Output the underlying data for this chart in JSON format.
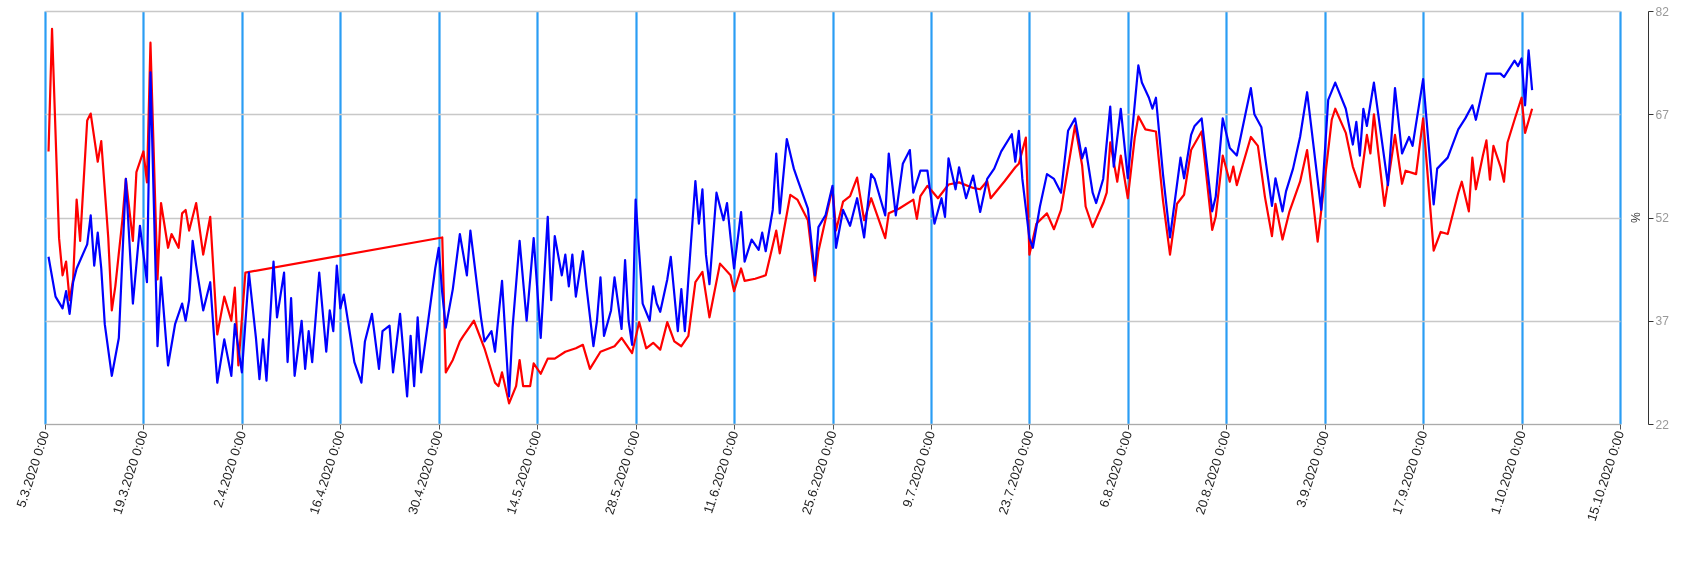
{
  "chart_data": {
    "type": "line",
    "ylabel": "%",
    "ylim": [
      22,
      82
    ],
    "yticks": [
      22,
      37,
      52,
      67,
      82
    ],
    "xlim": [
      "2020-03-05",
      "2020-10-15"
    ],
    "xticks": [
      {
        "value": "2020-03-05",
        "label": "5.3.2020 0:00"
      },
      {
        "value": "2020-03-19",
        "label": "19.3.2020 0:00"
      },
      {
        "value": "2020-04-02",
        "label": "2.4.2020 0:00"
      },
      {
        "value": "2020-04-16",
        "label": "16.4.2020 0:00"
      },
      {
        "value": "2020-04-30",
        "label": "30.4.2020 0:00"
      },
      {
        "value": "2020-05-14",
        "label": "14.5.2020 0:00"
      },
      {
        "value": "2020-05-28",
        "label": "28.5.2020 0:00"
      },
      {
        "value": "2020-06-11",
        "label": "11.6.2020 0:00"
      },
      {
        "value": "2020-06-25",
        "label": "25.6.2020 0:00"
      },
      {
        "value": "2020-07-09",
        "label": "9.7.2020 0:00"
      },
      {
        "value": "2020-07-23",
        "label": "23.7.2020 0:00"
      },
      {
        "value": "2020-08-06",
        "label": "6.8.2020 0:00"
      },
      {
        "value": "2020-08-20",
        "label": "20.8.2020 0:00"
      },
      {
        "value": "2020-09-03",
        "label": "3.9.2020 0:00"
      },
      {
        "value": "2020-09-17",
        "label": "17.9.2020 0:00"
      },
      {
        "value": "2020-10-01",
        "label": "1.10.2020 0:00"
      },
      {
        "value": "2020-10-15",
        "label": "15.10.2020 0:00"
      }
    ],
    "grid": true,
    "marker": "none",
    "line_style": "solid",
    "series": [
      {
        "color": "#ff0000",
        "x": [
          "2020-03-05T12:00",
          "2020-03-06T00:00",
          "2020-03-07T00:00",
          "2020-03-07T12:00",
          "2020-03-08T00:00",
          "2020-03-08T12:00",
          "2020-03-09T00:00",
          "2020-03-09T12:00",
          "2020-03-10T00:00",
          "2020-03-11T00:00",
          "2020-03-11T12:00",
          "2020-03-12T12:00",
          "2020-03-13T00:00",
          "2020-03-14T00:00",
          "2020-03-14T12:00",
          "2020-03-15T00:00",
          "2020-03-16T00:00",
          "2020-03-16T12:00",
          "2020-03-17T12:00",
          "2020-03-18T00:00",
          "2020-03-19T00:00",
          "2020-03-19T12:00",
          "2020-03-20T00:00",
          "2020-03-21T00:00",
          "2020-03-21T12:00",
          "2020-03-22T12:00",
          "2020-03-23T00:00",
          "2020-03-24T00:00",
          "2020-03-24T12:00",
          "2020-03-25T00:00",
          "2020-03-25T12:00",
          "2020-03-26T12:00",
          "2020-03-27T12:00",
          "2020-03-28T12:00",
          "2020-03-29T12:00",
          "2020-03-30T12:00",
          "2020-03-31T12:00",
          "2020-04-01T00:00",
          "2020-04-01T12:00",
          "2020-04-02T12:00",
          "2020-04-30T12:00",
          "2020-05-01T00:00",
          "2020-05-02T00:00",
          "2020-05-03T00:00",
          "2020-05-03T12:00",
          "2020-05-05T00:00",
          "2020-05-06T12:00",
          "2020-05-08T00:00",
          "2020-05-08T12:00",
          "2020-05-09T00:00",
          "2020-05-10T00:00",
          "2020-05-11T00:00",
          "2020-05-11T12:00",
          "2020-05-12T00:00",
          "2020-05-13T00:00",
          "2020-05-13T12:00",
          "2020-05-14T12:00",
          "2020-05-15T12:00",
          "2020-05-16T12:00",
          "2020-05-18T00:00",
          "2020-05-19T12:00",
          "2020-05-20T12:00",
          "2020-05-21T12:00",
          "2020-05-23T00:00",
          "2020-05-25T00:00",
          "2020-05-26T00:00",
          "2020-05-27T12:00",
          "2020-05-28T12:00",
          "2020-05-29T12:00",
          "2020-05-30T12:00",
          "2020-05-31T12:00",
          "2020-06-01T12:00",
          "2020-06-02T12:00",
          "2020-06-03T12:00",
          "2020-06-04T12:00",
          "2020-06-05T12:00",
          "2020-06-06T12:00",
          "2020-06-07T12:00",
          "2020-06-09T00:00",
          "2020-06-10T12:00",
          "2020-06-11T00:00",
          "2020-06-12T00:00",
          "2020-06-12T12:00",
          "2020-06-14T00:00",
          "2020-06-15T12:00",
          "2020-06-17T00:00",
          "2020-06-17T12:00",
          "2020-06-19T00:00",
          "2020-06-20T00:00",
          "2020-06-21T12:00",
          "2020-06-22T12:00",
          "2020-06-23T00:00",
          "2020-06-25T00:00",
          "2020-06-25T12:00",
          "2020-06-26T12:00",
          "2020-06-27T12:00",
          "2020-06-28T12:00",
          "2020-06-29T12:00",
          "2020-06-30T12:00",
          "2020-07-02T12:00",
          "2020-07-03T00:00",
          "2020-07-04T12:00",
          "2020-07-06T12:00",
          "2020-07-07T00:00",
          "2020-07-07T12:00",
          "2020-07-08T12:00",
          "2020-07-10T00:00",
          "2020-07-11T12:00",
          "2020-07-13T00:00",
          "2020-07-15T00:00",
          "2020-07-16T00:00",
          "2020-07-17T00:00",
          "2020-07-17T12:00",
          "2020-07-19T12:00",
          "2020-07-21T00:00",
          "2020-07-21T12:00",
          "2020-07-22T12:00",
          "2020-07-23T00:00",
          "2020-07-24T00:00",
          "2020-07-25T12:00",
          "2020-07-26T12:00",
          "2020-07-27T12:00",
          "2020-07-29T12:00",
          "2020-07-30T12:00",
          "2020-07-31T00:00",
          "2020-08-01T00:00",
          "2020-08-02T12:00",
          "2020-08-03T00:00",
          "2020-08-03T12:00",
          "2020-08-04T12:00",
          "2020-08-05T00:00",
          "2020-08-06T00:00",
          "2020-08-07T00:00",
          "2020-08-07T12:00",
          "2020-08-08T12:00",
          "2020-08-10T00:00",
          "2020-08-11T00:00",
          "2020-08-12T00:00",
          "2020-08-13T00:00",
          "2020-08-14T00:00",
          "2020-08-15T00:00",
          "2020-08-16T12:00",
          "2020-08-18T00:00",
          "2020-08-18T12:00",
          "2020-08-19T12:00",
          "2020-08-20T12:00",
          "2020-08-21T00:00",
          "2020-08-21T12:00",
          "2020-08-23T12:00",
          "2020-08-24T12:00",
          "2020-08-25T12:00",
          "2020-08-26T12:00",
          "2020-08-27T00:00",
          "2020-08-28T00:00",
          "2020-08-29T00:00",
          "2020-08-30T12:00",
          "2020-08-31T12:00",
          "2020-09-02T00:00",
          "2020-09-04T00:00",
          "2020-09-04T12:00",
          "2020-09-06T00:00",
          "2020-09-07T00:00",
          "2020-09-08T00:00",
          "2020-09-09T00:00",
          "2020-09-09T12:00",
          "2020-09-10T00:00",
          "2020-09-11T12:00",
          "2020-09-13T00:00",
          "2020-09-14T00:00",
          "2020-09-14T12:00",
          "2020-09-16T00:00",
          "2020-09-17T00:00",
          "2020-09-18T12:00",
          "2020-09-19T12:00",
          "2020-09-20T12:00",
          "2020-09-22T00:00",
          "2020-09-22T12:00",
          "2020-09-23T12:00",
          "2020-09-24T00:00",
          "2020-09-24T12:00",
          "2020-09-25T12:00",
          "2020-09-26T00:00",
          "2020-09-26T12:00",
          "2020-09-27T00:00",
          "2020-09-28T00:00",
          "2020-09-28T12:00",
          "2020-09-29T00:00",
          "2020-09-30T00:00",
          "2020-10-01T00:00",
          "2020-10-01T12:00",
          "2020-10-02T12:00"
        ],
        "values": [
          61.6,
          79.4,
          49,
          43.6,
          45.6,
          40,
          43,
          54.6,
          48.6,
          66.1,
          67.1,
          60.1,
          63.1,
          49,
          38.5,
          42,
          51.6,
          57.6,
          48.6,
          58.6,
          61.6,
          57.1,
          77.4,
          43,
          54.1,
          47.6,
          49.6,
          47.6,
          52.6,
          53.1,
          50.1,
          54.1,
          46.6,
          52.1,
          35,
          40.5,
          37,
          41.8,
          30.5,
          44,
          49.1,
          29.5,
          31.3,
          34,
          34.8,
          37,
          33,
          28,
          27.5,
          29.5,
          25,
          27.5,
          31.3,
          27.5,
          27.5,
          30.8,
          29.3,
          31.5,
          31.5,
          32.5,
          33,
          33.5,
          30,
          32.5,
          33.3,
          34.5,
          32.3,
          36.8,
          33,
          33.8,
          32.8,
          36.8,
          34,
          33.3,
          34.8,
          42.6,
          44.1,
          37.5,
          45.3,
          43.6,
          41.3,
          44.6,
          42.8,
          43.1,
          43.6,
          50.1,
          46.8,
          55.3,
          54.6,
          51.6,
          42.8,
          47.1,
          56.3,
          50.1,
          54.3,
          55.1,
          57.8,
          51.6,
          54.8,
          49,
          52.6,
          53.3,
          54.6,
          51.8,
          55.1,
          56.6,
          54.8,
          56.8,
          57.1,
          56.3,
          56.1,
          57.3,
          54.8,
          57.3,
          59.3,
          59.8,
          63.6,
          46.6,
          51.1,
          52.6,
          50.3,
          53.1,
          65.4,
          59.6,
          53.6,
          50.6,
          54.1,
          55.6,
          62.9,
          57.2,
          61,
          54.8,
          63.7,
          66.7,
          64.8,
          64.5,
          54.5,
          46.6,
          54,
          55.3,
          61.8,
          64.5,
          50.2,
          52.1,
          61,
          57.2,
          59.4,
          56.7,
          63.7,
          62.4,
          55,
          49.3,
          54,
          48.8,
          52.9,
          57.2,
          61.8,
          48.5,
          66.2,
          67.8,
          64.3,
          59.4,
          56.4,
          64,
          61.3,
          67,
          53.7,
          64,
          56.9,
          58.8,
          58.3,
          66.4,
          47.2,
          49.9,
          49.6,
          55.6,
          57.2,
          52.9,
          60.7,
          56.1,
          61,
          63.2,
          57.5,
          62.4,
          59.4,
          57.2,
          62.9,
          66.2,
          69.4,
          64.3,
          67.8
        ]
      },
      {
        "color": "#0000ff",
        "x": [
          "2020-03-05T12:00",
          "2020-03-06T12:00",
          "2020-03-07T12:00",
          "2020-03-08T00:00",
          "2020-03-08T12:00",
          "2020-03-09T00:00",
          "2020-03-09T12:00",
          "2020-03-11T00:00",
          "2020-03-11T12:00",
          "2020-03-12T00:00",
          "2020-03-12T12:00",
          "2020-03-13T00:00",
          "2020-03-13T12:00",
          "2020-03-14T12:00",
          "2020-03-15T12:00",
          "2020-03-16T12:00",
          "2020-03-17T12:00",
          "2020-03-18T12:00",
          "2020-03-19T12:00",
          "2020-03-20T00:00",
          "2020-03-21T00:00",
          "2020-03-21T12:00",
          "2020-03-22T12:00",
          "2020-03-23T12:00",
          "2020-03-24T12:00",
          "2020-03-25T00:00",
          "2020-03-25T12:00",
          "2020-03-26T00:00",
          "2020-03-26T12:00",
          "2020-03-27T12:00",
          "2020-03-28T12:00",
          "2020-03-29T12:00",
          "2020-03-30T12:00",
          "2020-03-31T12:00",
          "2020-04-01T00:00",
          "2020-04-02T00:00",
          "2020-04-03T00:00",
          "2020-04-04T00:00",
          "2020-04-04T12:00",
          "2020-04-05T00:00",
          "2020-04-05T12:00",
          "2020-04-06T12:00",
          "2020-04-07T00:00",
          "2020-04-08T00:00",
          "2020-04-08T12:00",
          "2020-04-09T00:00",
          "2020-04-09T12:00",
          "2020-04-10T12:00",
          "2020-04-11T00:00",
          "2020-04-11T12:00",
          "2020-04-12T00:00",
          "2020-04-13T00:00",
          "2020-04-14T00:00",
          "2020-04-14T12:00",
          "2020-04-15T00:00",
          "2020-04-15T12:00",
          "2020-04-16T00:00",
          "2020-04-16T12:00",
          "2020-04-18T00:00",
          "2020-04-19T00:00",
          "2020-04-19T12:00",
          "2020-04-20T12:00",
          "2020-04-21T12:00",
          "2020-04-22T00:00",
          "2020-04-23T00:00",
          "2020-04-23T12:00",
          "2020-04-24T12:00",
          "2020-04-25T12:00",
          "2020-04-26T00:00",
          "2020-04-26T12:00",
          "2020-04-27T00:00",
          "2020-04-27T12:00",
          "2020-04-28T12:00",
          "2020-04-29T12:00",
          "2020-04-30T00:00",
          "2020-04-30T12:00",
          "2020-05-01T00:00",
          "2020-05-02T00:00",
          "2020-05-03T00:00",
          "2020-05-04T00:00",
          "2020-05-04T12:00",
          "2020-05-06T00:00",
          "2020-05-06T12:00",
          "2020-05-07T12:00",
          "2020-05-08T00:00",
          "2020-05-09T00:00",
          "2020-05-10T00:00",
          "2020-05-10T12:00",
          "2020-05-11T12:00",
          "2020-05-12T12:00",
          "2020-05-13T12:00",
          "2020-05-14T12:00",
          "2020-05-15T12:00",
          "2020-05-16T00:00",
          "2020-05-16T12:00",
          "2020-05-17T12:00",
          "2020-05-18T00:00",
          "2020-05-18T12:00",
          "2020-05-19T00:00",
          "2020-05-19T12:00",
          "2020-05-20T12:00",
          "2020-05-21T00:00",
          "2020-05-22T00:00",
          "2020-05-22T12:00",
          "2020-05-23T00:00",
          "2020-05-23T12:00",
          "2020-05-24T12:00",
          "2020-05-25T00:00",
          "2020-05-26T00:00",
          "2020-05-26T12:00",
          "2020-05-27T00:00",
          "2020-05-27T12:00",
          "2020-05-28T00:00",
          "2020-05-29T00:00",
          "2020-05-30T00:00",
          "2020-05-30T12:00",
          "2020-05-31T00:00",
          "2020-05-31T12:00",
          "2020-06-01T12:00",
          "2020-06-02T00:00",
          "2020-06-03T00:00",
          "2020-06-03T12:00",
          "2020-06-04T00:00",
          "2020-06-04T12:00",
          "2020-06-05T12:00",
          "2020-06-06T00:00",
          "2020-06-06T12:00",
          "2020-06-07T00:00",
          "2020-06-07T12:00",
          "2020-06-08T12:00",
          "2020-06-09T12:00",
          "2020-06-10T00:00",
          "2020-06-10T12:00",
          "2020-06-11T00:00",
          "2020-06-12T00:00",
          "2020-06-12T12:00",
          "2020-06-13T12:00",
          "2020-06-14T12:00",
          "2020-06-15T00:00",
          "2020-06-15T12:00",
          "2020-06-16T12:00",
          "2020-06-17T00:00",
          "2020-06-17T12:00",
          "2020-06-18T12:00",
          "2020-06-19T12:00",
          "2020-06-20T00:00",
          "2020-06-21T12:00",
          "2020-06-22T12:00",
          "2020-06-23T00:00",
          "2020-06-24T00:00",
          "2020-06-25T00:00",
          "2020-06-25T12:00",
          "2020-06-26T12:00",
          "2020-06-27T12:00",
          "2020-06-28T12:00",
          "2020-06-29T12:00",
          "2020-06-30T12:00",
          "2020-07-01T00:00",
          "2020-07-02T12:00",
          "2020-07-03T00:00",
          "2020-07-04T00:00",
          "2020-07-05T00:00",
          "2020-07-06T00:00",
          "2020-07-06T12:00",
          "2020-07-07T12:00",
          "2020-07-08T12:00",
          "2020-07-09T12:00",
          "2020-07-10T12:00",
          "2020-07-11T00:00",
          "2020-07-11T12:00",
          "2020-07-12T12:00",
          "2020-07-13T00:00",
          "2020-07-14T00:00",
          "2020-07-15T00:00",
          "2020-07-16T00:00",
          "2020-07-17T00:00",
          "2020-07-18T00:00",
          "2020-07-19T00:00",
          "2020-07-20T12:00",
          "2020-07-21T00:00",
          "2020-07-21T12:00",
          "2020-07-22T00:00",
          "2020-07-23T00:00",
          "2020-07-23T12:00",
          "2020-07-24T12:00",
          "2020-07-25T12:00",
          "2020-07-26T12:00",
          "2020-07-27T12:00",
          "2020-07-28T12:00",
          "2020-07-29T12:00",
          "2020-07-30T12:00",
          "2020-07-31T00:00",
          "2020-08-01T00:00",
          "2020-08-01T12:00",
          "2020-08-02T12:00",
          "2020-08-03T12:00",
          "2020-08-04T00:00",
          "2020-08-05T00:00",
          "2020-08-06T00:00",
          "2020-08-07T12:00",
          "2020-08-08T00:00",
          "2020-08-09T00:00",
          "2020-08-09T12:00",
          "2020-08-10T00:00",
          "2020-08-11T00:00",
          "2020-08-12T00:00",
          "2020-08-13T12:00",
          "2020-08-14T00:00",
          "2020-08-15T00:00",
          "2020-08-15T12:00",
          "2020-08-16T12:00",
          "2020-08-18T00:00",
          "2020-08-18T12:00",
          "2020-08-19T12:00",
          "2020-08-20T12:00",
          "2020-08-21T12:00",
          "2020-08-23T12:00",
          "2020-08-24T00:00",
          "2020-08-25T00:00",
          "2020-08-25T12:00",
          "2020-08-26T12:00",
          "2020-08-27T00:00",
          "2020-08-28T00:00",
          "2020-08-28T12:00",
          "2020-08-29T12:00",
          "2020-08-30T12:00",
          "2020-08-31T12:00",
          "2020-09-02T12:00",
          "2020-09-03T12:00",
          "2020-09-04T12:00",
          "2020-09-06T00:00",
          "2020-09-07T00:00",
          "2020-09-07T12:00",
          "2020-09-08T00:00",
          "2020-09-08T12:00",
          "2020-09-09T00:00",
          "2020-09-10T00:00",
          "2020-09-12T00:00",
          "2020-09-13T00:00",
          "2020-09-14T00:00",
          "2020-09-15T00:00",
          "2020-09-15T12:00",
          "2020-09-17T00:00",
          "2020-09-18T12:00",
          "2020-09-19T00:00",
          "2020-09-20T12:00",
          "2020-09-22T00:00",
          "2020-09-23T00:00",
          "2020-09-24T00:00",
          "2020-09-24T12:00",
          "2020-09-26T00:00",
          "2020-09-28T00:00",
          "2020-09-28T12:00",
          "2020-09-30T00:00",
          "2020-09-30T12:00",
          "2020-10-01T00:00",
          "2020-10-01T12:00",
          "2020-10-02T00:00",
          "2020-10-02T12:00"
        ],
        "values": [
          46.3,
          40.5,
          38.8,
          41.3,
          38,
          42.6,
          44.6,
          48.1,
          52.3,
          45,
          49.8,
          44.6,
          36.5,
          29,
          34.5,
          57.6,
          39.5,
          50.8,
          42.6,
          73.1,
          33.3,
          43.3,
          30.5,
          36.5,
          39.5,
          37,
          40,
          48.6,
          45,
          38.5,
          42.6,
          28,
          34.3,
          29,
          36.5,
          29.5,
          44,
          34.5,
          28.5,
          34.3,
          28.3,
          45.6,
          37.5,
          44,
          31,
          40.3,
          29,
          37,
          30,
          35.5,
          31,
          44,
          32.5,
          38.5,
          35.5,
          45,
          38.8,
          40.8,
          31,
          28,
          34,
          38,
          30,
          35.5,
          36.3,
          29.5,
          38,
          26,
          34.8,
          27.5,
          37.5,
          29.5,
          37,
          44.6,
          47.6,
          41,
          36,
          41.6,
          49.6,
          43.6,
          50.1,
          37.5,
          34,
          35.5,
          32.5,
          42.8,
          26,
          36,
          48.6,
          37,
          49,
          34.5,
          52.1,
          40,
          49.3,
          43.6,
          46.6,
          42,
          46.6,
          40.5,
          47.1,
          42,
          33.3,
          37,
          43.3,
          34.8,
          38.5,
          43.3,
          35.8,
          45.8,
          37,
          33.5,
          54.6,
          39.5,
          37,
          42,
          39.5,
          38.3,
          43,
          46.3,
          35.5,
          41.6,
          35.5,
          43,
          57.3,
          51.1,
          56.1,
          46.6,
          42.3,
          55.6,
          51.6,
          54.1,
          49.1,
          44.6,
          52.8,
          45.6,
          48.8,
          47.3,
          49.8,
          47.1,
          53.1,
          61.3,
          52.6,
          63.4,
          59.1,
          57.6,
          53.3,
          43.6,
          50.6,
          52.3,
          56.6,
          47.6,
          53.1,
          50.8,
          54.8,
          49.1,
          58.3,
          57.6,
          52.3,
          61.3,
          52.3,
          59.8,
          61.8,
          55.6,
          58.8,
          58.8,
          51.1,
          54.8,
          52.1,
          60.6,
          56.1,
          59.3,
          54.8,
          58.1,
          52.8,
          57.6,
          59.1,
          61.6,
          64.1,
          60.1,
          64.6,
          57.6,
          49,
          47.6,
          53.6,
          58.3,
          57.6,
          55.6,
          64.6,
          66.4,
          60.6,
          62.1,
          55.6,
          54.1,
          57.6,
          68.1,
          59.4,
          67.8,
          57.7,
          74.1,
          71.6,
          69.4,
          67.8,
          69.4,
          58.3,
          49.1,
          60.7,
          57.7,
          64,
          65.3,
          66.4,
          52.9,
          55,
          66.4,
          62.1,
          61,
          70.8,
          67,
          65.1,
          61,
          53.7,
          57.7,
          52.9,
          55.8,
          59.1,
          63.7,
          70.2,
          53.1,
          69.1,
          71.6,
          67.8,
          62.6,
          65.9,
          61,
          67.8,
          65.3,
          71.6,
          56.7,
          70.8,
          61.3,
          63.7,
          62.4,
          72.1,
          53.9,
          59.1,
          60.7,
          64.8,
          66.4,
          68.3,
          66.2,
          72.9,
          72.9,
          72.4,
          74.8,
          74,
          75.1,
          68.3,
          76.3,
          70.5
        ]
      }
    ]
  }
}
